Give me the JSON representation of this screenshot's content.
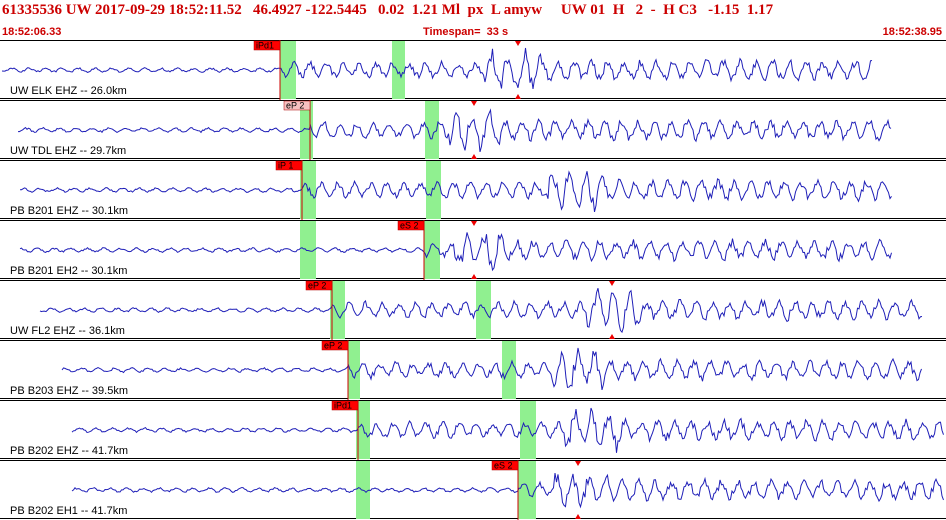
{
  "header": {
    "title": "61335536 UW 2017-09-29 18:52:11.52   46.4927 -122.5445   0.02  1.21 Ml  px  L amyw     UW 01  H   2  -  H C3   -1.15  1.17",
    "start_time": "18:52:06.33",
    "timespan": "Timespan=  33 s",
    "end_time": "18:52:38.95"
  },
  "colors": {
    "title": "#cc0000",
    "trace": "#1f1fb8",
    "pick_fill": "#ff0000",
    "pick_fill_light": "#f7c0c0",
    "window_fill": "#90f090",
    "pick_line": "#cc0000"
  },
  "panels": [
    {
      "label": "UW ELK EHZ -- 26.0km",
      "pick": "iPd1",
      "pick_style": "solid",
      "window": "green",
      "amp_marker": true
    },
    {
      "label": "UW TDL EHZ -- 29.7km",
      "pick": "eP 2",
      "pick_style": "light",
      "window": "green",
      "amp_marker": true
    },
    {
      "label": "PB B201 EHZ -- 30.1km",
      "pick": "iP 1",
      "pick_style": "solid",
      "window": "green",
      "amp_marker": false
    },
    {
      "label": "PB B201 EH2 -- 30.1km",
      "pick": "eS 2",
      "pick_style": "solid",
      "window": "green",
      "amp_marker": true
    },
    {
      "label": "UW FL2 EHZ -- 36.1km",
      "pick": "eP 2",
      "pick_style": "solid",
      "window": "green",
      "amp_marker": true
    },
    {
      "label": "PB B203 EHZ -- 39.5km",
      "pick": "eP 2",
      "pick_style": "solid",
      "window": "green",
      "amp_marker": false
    },
    {
      "label": "PB B202 EHZ -- 41.7km",
      "pick": "iPd1",
      "pick_style": "solid",
      "window": "green",
      "amp_marker": false
    },
    {
      "label": "PB B202 EH1 -- 41.7km",
      "pick": "eS 2",
      "pick_style": "solid",
      "window": "green",
      "amp_marker": true
    }
  ]
}
